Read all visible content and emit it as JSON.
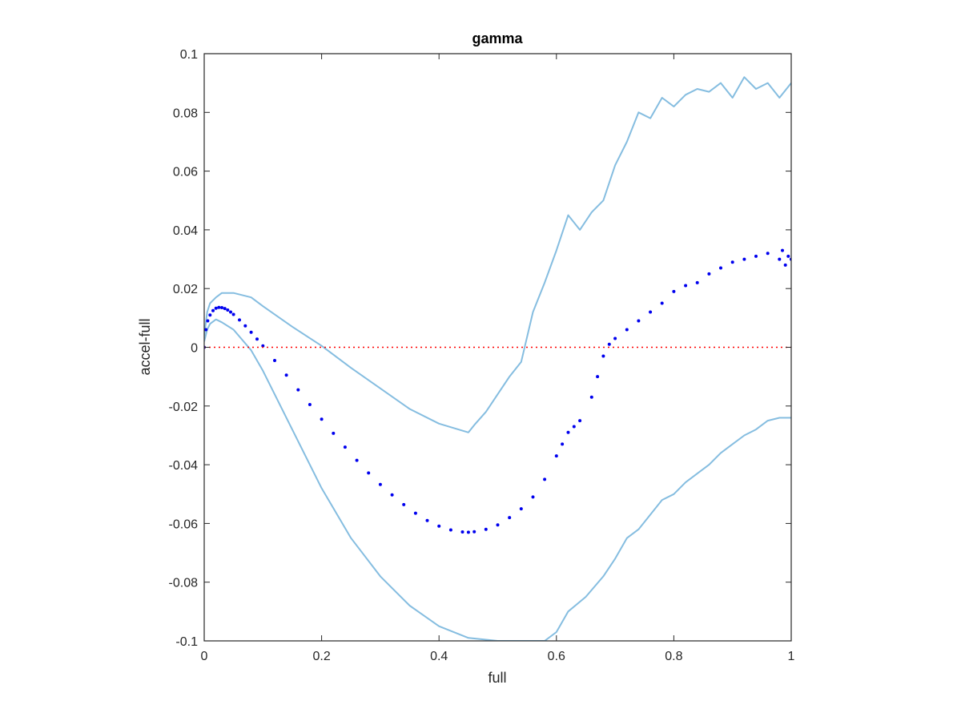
{
  "chart_data": {
    "type": "scatter",
    "title": "gamma",
    "xlabel": "full",
    "ylabel": "accel-full",
    "xlim": [
      0,
      1
    ],
    "ylim": [
      -0.1,
      0.1
    ],
    "x_ticks": [
      "0",
      "0.2",
      "0.4",
      "0.6",
      "0.8",
      "1"
    ],
    "x_tick_values": [
      0,
      0.2,
      0.4,
      0.6,
      0.8,
      1
    ],
    "y_ticks": [
      "-0.1",
      "-0.08",
      "-0.06",
      "-0.04",
      "-0.02",
      "0",
      "0.02",
      "0.04",
      "0.06",
      "0.08",
      "0.1"
    ],
    "y_tick_values": [
      -0.1,
      -0.08,
      -0.06,
      -0.04,
      -0.02,
      0,
      0.02,
      0.04,
      0.06,
      0.08,
      0.1
    ],
    "grid": false,
    "reference_line": {
      "y": 0,
      "color": "#ff0000",
      "style": "dotted"
    },
    "series": [
      {
        "role": "upper-band",
        "kind": "line",
        "color": "#85bde0",
        "x": [
          0,
          0.005,
          0.01,
          0.02,
          0.03,
          0.05,
          0.08,
          0.1,
          0.15,
          0.2,
          0.25,
          0.3,
          0.35,
          0.4,
          0.45,
          0.46,
          0.48,
          0.5,
          0.52,
          0.54,
          0.56,
          0.58,
          0.6,
          0.62,
          0.64,
          0.66,
          0.68,
          0.7,
          0.72,
          0.74,
          0.76,
          0.78,
          0.8,
          0.82,
          0.84,
          0.86,
          0.88,
          0.9,
          0.92,
          0.94,
          0.96,
          0.98,
          1.0
        ],
        "y": [
          0.004,
          0.012,
          0.015,
          0.017,
          0.0185,
          0.0185,
          0.017,
          0.014,
          0.007,
          0.0005,
          -0.007,
          -0.014,
          -0.021,
          -0.026,
          -0.029,
          -0.0265,
          -0.022,
          -0.016,
          -0.01,
          -0.005,
          0.012,
          0.022,
          0.033,
          0.045,
          0.04,
          0.046,
          0.05,
          0.062,
          0.07,
          0.08,
          0.078,
          0.085,
          0.082,
          0.086,
          0.088,
          0.087,
          0.09,
          0.085,
          0.092,
          0.088,
          0.09,
          0.085,
          0.09
        ]
      },
      {
        "role": "lower-band",
        "kind": "line",
        "color": "#85bde0",
        "x": [
          0,
          0.005,
          0.01,
          0.02,
          0.03,
          0.05,
          0.08,
          0.1,
          0.15,
          0.2,
          0.25,
          0.3,
          0.35,
          0.4,
          0.45,
          0.5,
          0.55,
          0.58,
          0.6,
          0.62,
          0.65,
          0.68,
          0.7,
          0.72,
          0.74,
          0.76,
          0.78,
          0.8,
          0.82,
          0.84,
          0.86,
          0.88,
          0.9,
          0.92,
          0.94,
          0.96,
          0.98,
          1.0
        ],
        "y": [
          0.002,
          0.006,
          0.008,
          0.0095,
          0.0085,
          0.006,
          -0.001,
          -0.008,
          -0.028,
          -0.048,
          -0.065,
          -0.078,
          -0.088,
          -0.095,
          -0.099,
          -0.1,
          -0.1,
          -0.1,
          -0.097,
          -0.09,
          -0.085,
          -0.078,
          -0.072,
          -0.065,
          -0.062,
          -0.057,
          -0.052,
          -0.05,
          -0.046,
          -0.043,
          -0.04,
          -0.036,
          -0.033,
          -0.03,
          -0.028,
          -0.025,
          -0.024,
          -0.024
        ]
      },
      {
        "role": "mean",
        "kind": "dots",
        "color": "#0000ee",
        "x": [
          0,
          0.003,
          0.006,
          0.01,
          0.015,
          0.02,
          0.025,
          0.03,
          0.035,
          0.04,
          0.045,
          0.05,
          0.06,
          0.07,
          0.08,
          0.09,
          0.1,
          0.12,
          0.14,
          0.16,
          0.18,
          0.2,
          0.22,
          0.24,
          0.26,
          0.28,
          0.3,
          0.32,
          0.34,
          0.36,
          0.38,
          0.4,
          0.42,
          0.44,
          0.45,
          0.46,
          0.48,
          0.5,
          0.52,
          0.54,
          0.56,
          0.58,
          0.6,
          0.61,
          0.62,
          0.63,
          0.64,
          0.66,
          0.67,
          0.68,
          0.69,
          0.7,
          0.72,
          0.74,
          0.76,
          0.78,
          0.8,
          0.82,
          0.84,
          0.86,
          0.88,
          0.9,
          0.92,
          0.94,
          0.96,
          0.98,
          0.985,
          0.99,
          0.995,
          1.0
        ],
        "y": [
          0.0,
          0.006,
          0.009,
          0.011,
          0.0125,
          0.0133,
          0.0136,
          0.0135,
          0.0132,
          0.0127,
          0.012,
          0.0112,
          0.0093,
          0.0073,
          0.0051,
          0.0028,
          0.0005,
          -0.0045,
          -0.0095,
          -0.0145,
          -0.0195,
          -0.0245,
          -0.0293,
          -0.034,
          -0.0385,
          -0.0428,
          -0.0467,
          -0.0503,
          -0.0536,
          -0.0565,
          -0.059,
          -0.0609,
          -0.0622,
          -0.0629,
          -0.063,
          -0.0628,
          -0.062,
          -0.0605,
          -0.058,
          -0.055,
          -0.051,
          -0.045,
          -0.037,
          -0.033,
          -0.029,
          -0.027,
          -0.025,
          -0.017,
          -0.01,
          -0.003,
          0.001,
          0.003,
          0.006,
          0.009,
          0.012,
          0.015,
          0.019,
          0.021,
          0.022,
          0.025,
          0.027,
          0.029,
          0.03,
          0.031,
          0.032,
          0.03,
          0.033,
          0.028,
          0.031,
          0.03
        ]
      }
    ]
  }
}
